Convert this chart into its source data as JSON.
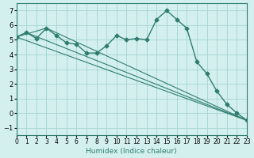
{
  "xlabel": "Humidex (Indice chaleur)",
  "ylabel": "",
  "background_color": "#d4f0ee",
  "grid_color": "#aad8d4",
  "line_color": "#2e7d6e",
  "xlim": [
    0,
    23
  ],
  "ylim": [
    -1.5,
    7.5
  ],
  "yticks": [
    -1,
    0,
    1,
    2,
    3,
    4,
    5,
    6,
    7
  ],
  "xtick_labels": [
    "0",
    "1",
    "2",
    "3",
    "4",
    "5",
    "6",
    "7",
    "8",
    "9",
    "10",
    "11",
    "12",
    "13",
    "14",
    "15",
    "16",
    "17",
    "18",
    "19",
    "20",
    "21",
    "22",
    "23"
  ],
  "series": [
    {
      "x": [
        0,
        1,
        2,
        3,
        4,
        5,
        6,
        7,
        8,
        9,
        10,
        11,
        12,
        13,
        14,
        15,
        16,
        17,
        18,
        19,
        20,
        21,
        22,
        23
      ],
      "y": [
        5.2,
        5.5,
        5.1,
        5.8,
        5.3,
        4.8,
        4.7,
        4.1,
        4.1,
        4.6,
        5.3,
        5.0,
        5.1,
        5.0,
        6.4,
        7.0,
        6.4,
        5.8,
        3.5,
        2.7,
        1.5,
        0.6,
        0.0,
        -0.5
      ],
      "has_markers": true
    },
    {
      "x": [
        0,
        23
      ],
      "y": [
        5.2,
        -0.5
      ],
      "has_markers": false
    },
    {
      "x": [
        0,
        3,
        23
      ],
      "y": [
        5.2,
        5.8,
        -0.5
      ],
      "has_markers": false
    },
    {
      "x": [
        0,
        1,
        23
      ],
      "y": [
        5.2,
        5.5,
        -0.5
      ],
      "has_markers": false
    }
  ]
}
